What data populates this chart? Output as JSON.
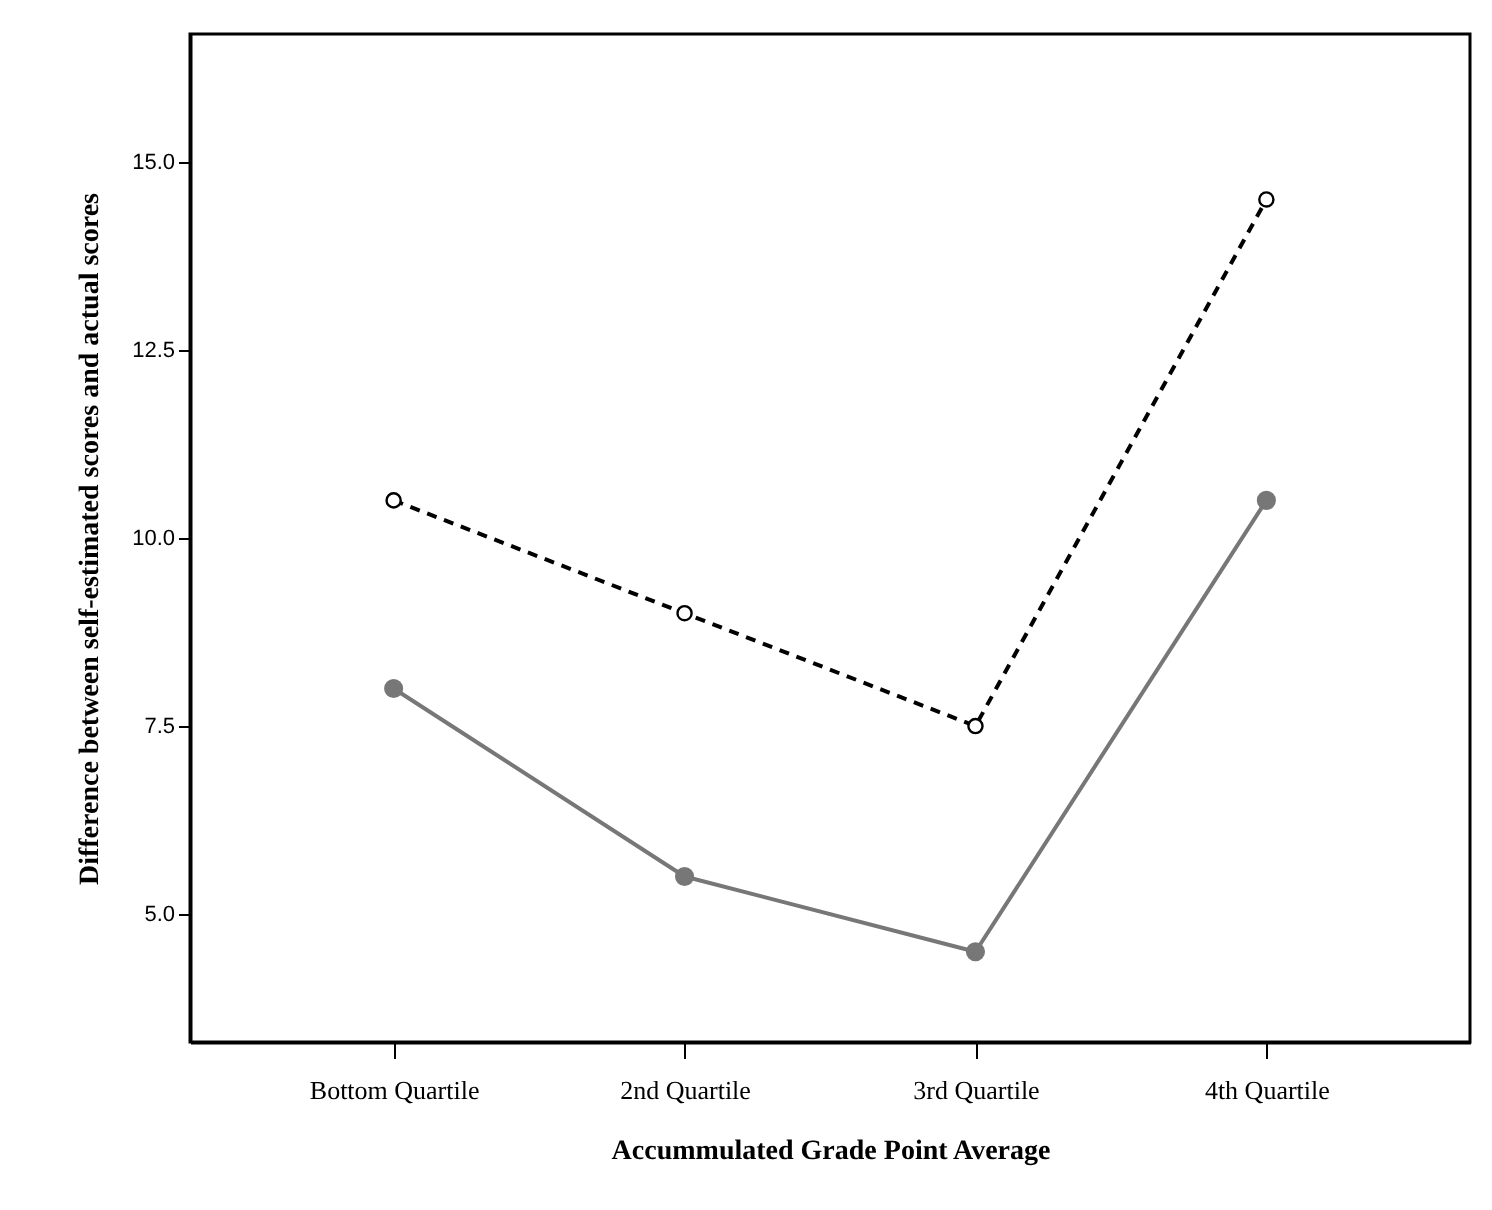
{
  "chart_data": {
    "type": "line",
    "xlabel": "Accummulated Grade Point Average",
    "ylabel": "Difference between self-estimated scores and actual scores",
    "categories": [
      "Bottom Quartile",
      "2nd Quartile",
      "3rd Quartile",
      "4th Quartile"
    ],
    "series": [
      {
        "color": "#000000",
        "line_style": "dashed",
        "values": [
          10.5,
          9.0,
          7.5,
          14.5
        ]
      },
      {
        "color": "#777777",
        "line_style": "solid",
        "values": [
          8.0,
          5.5,
          4.5,
          10.5
        ]
      }
    ],
    "ylim": [
      3.3,
      16.7
    ],
    "yticks": [
      {
        "value": 5,
        "label": "5.0"
      },
      {
        "value": 7.5,
        "label": "7.5"
      },
      {
        "value": 10,
        "label": "10.0"
      },
      {
        "value": 12.5,
        "label": "12.5"
      },
      {
        "value": 15,
        "label": "15.0"
      }
    ],
    "grid": false,
    "marker": "circle"
  }
}
